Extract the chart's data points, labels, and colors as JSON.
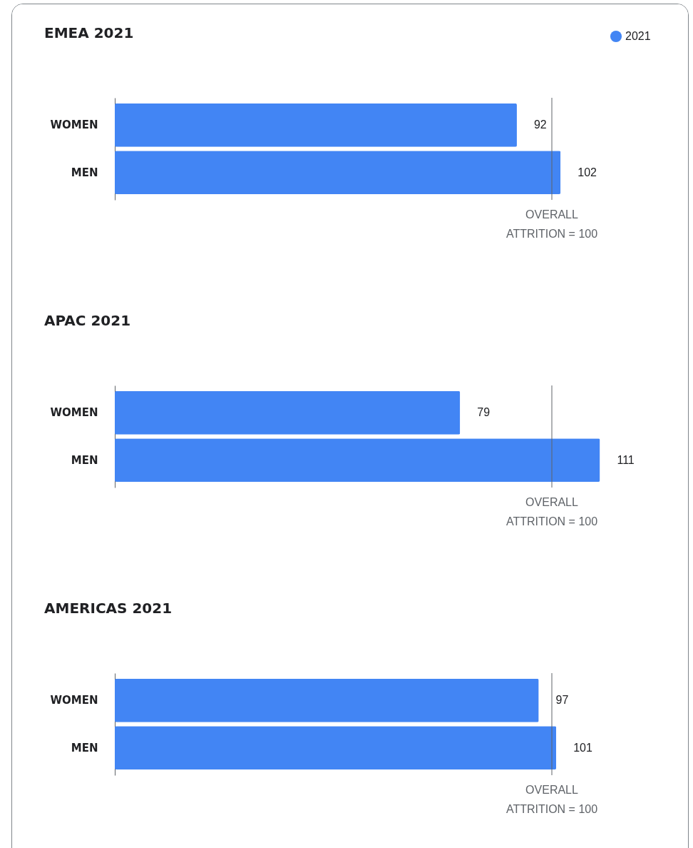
{
  "chart_data": [
    {
      "type": "bar",
      "title": "EMEA 2021",
      "orientation": "horizontal",
      "categories": [
        "WOMEN",
        "MEN"
      ],
      "tick_labels": "y",
      "data_labels": true,
      "legend": "top right",
      "series": [
        {
          "name": "2021",
          "color": "#4285f4",
          "values": [
            92,
            102
          ]
        }
      ],
      "ref_lines": [
        {
          "axis": "x",
          "value": 100,
          "label": "OVERALL ATTRITION = 100"
        }
      ]
    },
    {
      "type": "bar",
      "title": "APAC 2021",
      "orientation": "horizontal",
      "categories": [
        "WOMEN",
        "MEN"
      ],
      "tick_labels": "y",
      "data_labels": true,
      "series": [
        {
          "color": "#4285f4",
          "values": [
            79,
            111
          ]
        }
      ],
      "ref_lines": [
        {
          "axis": "x",
          "value": 100,
          "label": "OVERALL ATTRITION = 100"
        }
      ]
    },
    {
      "type": "bar",
      "title": "AMERICAS 2021",
      "orientation": "horizontal",
      "categories": [
        "WOMEN",
        "MEN"
      ],
      "tick_labels": "y",
      "data_labels": true,
      "series": [
        {
          "color": "#4285f4",
          "values": [
            97,
            101
          ]
        }
      ],
      "ref_lines": [
        {
          "axis": "x",
          "value": 100,
          "label": "OVERALL ATTRITION = 100"
        }
      ]
    }
  ]
}
